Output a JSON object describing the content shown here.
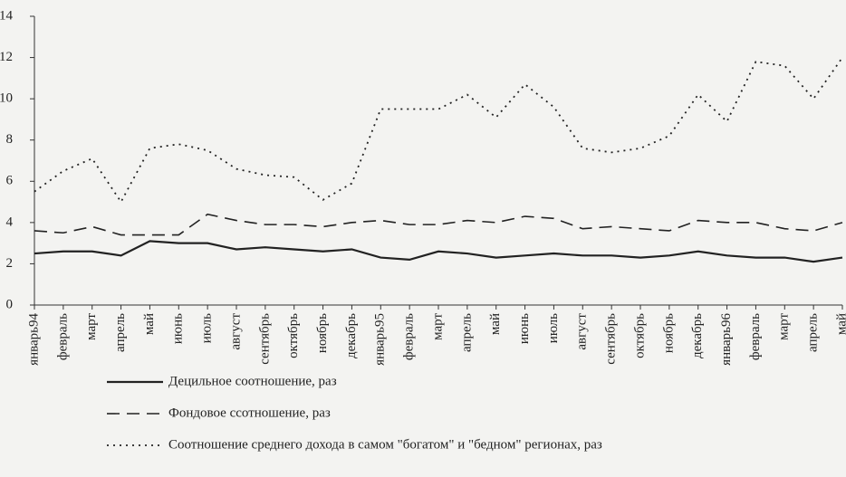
{
  "chart_data": {
    "type": "line",
    "categories": [
      "январь94",
      "февраль",
      "март",
      "апрель",
      "май",
      "июнь",
      "июль",
      "август",
      "сентябрь",
      "октябрь",
      "ноябрь",
      "декабрь",
      "январь95",
      "февраль",
      "март",
      "апрель",
      "май",
      "июнь",
      "июль",
      "август",
      "сентябрь",
      "октябрь",
      "ноябрь",
      "декабрь",
      "январь96",
      "февраль",
      "март",
      "апрель",
      "май"
    ],
    "series": [
      {
        "name": "Децильное соотношение, раз",
        "color": "#222222",
        "dash": "solid",
        "values": [
          2.5,
          2.6,
          2.6,
          2.4,
          3.1,
          3.0,
          3.0,
          2.7,
          2.8,
          2.7,
          2.6,
          2.7,
          2.3,
          2.2,
          2.6,
          2.5,
          2.3,
          2.4,
          2.5,
          2.4,
          2.4,
          2.3,
          2.4,
          2.6,
          2.4,
          2.3,
          2.3,
          2.1,
          2.3
        ]
      },
      {
        "name": "Фондовое ссотношение, раз",
        "color": "#222222",
        "dash": "dashed",
        "values": [
          3.6,
          3.5,
          3.8,
          3.4,
          3.4,
          3.4,
          4.4,
          4.1,
          3.9,
          3.9,
          3.8,
          4.0,
          4.1,
          3.9,
          3.9,
          4.1,
          4.0,
          4.3,
          4.2,
          3.7,
          3.8,
          3.7,
          3.6,
          4.1,
          4.0,
          4.0,
          3.7,
          3.6,
          4.0
        ]
      },
      {
        "name": "Соотношение среднего дохода в самом \"богатом\" и \"бедном\" регионах, раз",
        "color": "#222222",
        "dash": "dotted",
        "values": [
          5.5,
          6.5,
          7.1,
          5.0,
          7.6,
          7.8,
          7.5,
          6.6,
          6.3,
          6.2,
          5.1,
          5.9,
          9.5,
          9.5,
          9.5,
          10.2,
          9.1,
          10.7,
          9.6,
          7.6,
          7.4,
          7.6,
          8.2,
          10.2,
          8.9,
          11.8,
          11.6,
          10.0,
          12.0
        ]
      }
    ],
    "ylim": [
      0,
      14
    ],
    "yticks": [
      0,
      2,
      4,
      6,
      8,
      10,
      12,
      14
    ],
    "grid": false,
    "legend": "bottom"
  }
}
